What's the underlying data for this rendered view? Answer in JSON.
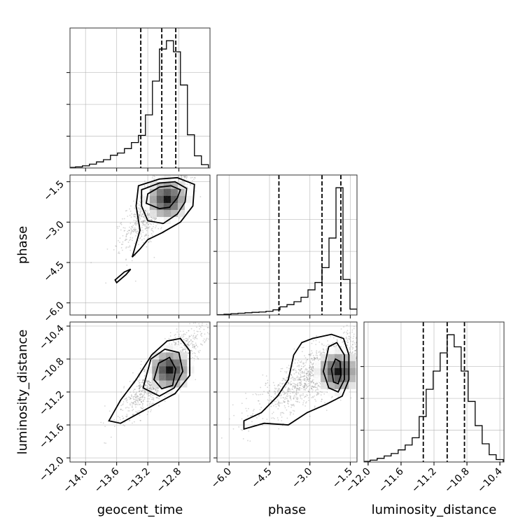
{
  "chart_data": {
    "type": "corner",
    "parameters": [
      "geocent_time",
      "phase",
      "luminosity_distance"
    ],
    "axes": {
      "geocent_time": {
        "label": "geocent_time",
        "range": [
          -14.2,
          -12.4
        ],
        "ticks": [
          -14.0,
          -13.6,
          -13.2,
          -12.8
        ],
        "tick_labels": [
          "−14.0",
          "−13.6",
          "−13.2",
          "−12.8"
        ]
      },
      "phase": {
        "label": "phase",
        "range": [
          -6.45,
          -1.25
        ],
        "ticks": [
          -6.0,
          -4.5,
          -3.0,
          -1.5
        ],
        "tick_labels": [
          "−6.0",
          "−4.5",
          "−3.0",
          "−1.5"
        ]
      },
      "luminosity_distance": {
        "label": "luminosity_distance",
        "range": [
          -12.05,
          -10.35
        ],
        "ticks": [
          -12.0,
          -11.6,
          -11.2,
          -10.8,
          -10.4
        ],
        "tick_labels": [
          "−12.0",
          "−11.6",
          "−11.2",
          "−10.8",
          "−10.4"
        ]
      }
    },
    "histograms": [
      {
        "param": "geocent_time",
        "quantiles": [
          -13.29,
          -13.02,
          -12.84
        ],
        "bin_edges": [
          -14.22,
          -14.13,
          -14.04,
          -13.95,
          -13.86,
          -13.77,
          -13.68,
          -13.59,
          -13.5,
          -13.41,
          -13.32,
          -13.23,
          -13.14,
          -13.05,
          -12.96,
          -12.87,
          -12.78,
          -12.69,
          -12.6,
          -12.51,
          -12.42
        ],
        "counts": [
          1,
          2,
          4,
          7,
          11,
          15,
          23,
          27,
          35,
          46,
          59,
          96,
          157,
          215,
          230,
          210,
          150,
          60,
          22,
          6
        ]
      },
      {
        "param": "phase",
        "quantiles": [
          -4.15,
          -2.55,
          -1.85
        ],
        "bin_edges": [
          -6.45,
          -6.19,
          -5.93,
          -5.67,
          -5.41,
          -5.15,
          -4.89,
          -4.63,
          -4.37,
          -4.11,
          -3.85,
          -3.59,
          -3.33,
          -3.07,
          -2.81,
          -2.55,
          -2.29,
          -2.03,
          -1.77,
          -1.51,
          -1.25
        ],
        "counts": [
          2,
          5,
          9,
          12,
          15,
          18,
          20,
          25,
          35,
          55,
          70,
          90,
          120,
          170,
          220,
          320,
          520,
          860,
          240,
          40
        ]
      },
      {
        "param": "luminosity_distance",
        "quantiles": [
          -11.33,
          -11.04,
          -10.83
        ],
        "bin_edges": [
          -12.06,
          -11.975,
          -11.89,
          -11.805,
          -11.72,
          -11.635,
          -11.55,
          -11.465,
          -11.38,
          -11.295,
          -11.21,
          -11.125,
          -11.04,
          -10.955,
          -10.87,
          -10.785,
          -10.7,
          -10.615,
          -10.53,
          -10.445,
          -10.36
        ],
        "counts": [
          1,
          3,
          6,
          10,
          14,
          20,
          28,
          40,
          75,
          120,
          150,
          180,
          210,
          190,
          150,
          100,
          60,
          30,
          12,
          4
        ]
      }
    ],
    "pairs": [
      {
        "x": "geocent_time",
        "y": "phase",
        "center": [
          -13.0,
          -2.0
        ],
        "sigma": [
          0.23,
          0.85
        ],
        "rho": 0.8,
        "peak": [
          -12.95,
          -2.15
        ],
        "contours": [
          [
            [
              -13.2,
              -1.95
            ],
            [
              -13.05,
              -1.7
            ],
            [
              -12.9,
              -1.65
            ],
            [
              -12.78,
              -1.8
            ],
            [
              -12.82,
              -2.1
            ],
            [
              -12.92,
              -2.45
            ],
            [
              -13.05,
              -2.5
            ],
            [
              -13.22,
              -2.3
            ]
          ],
          [
            [
              -13.28,
              -1.8
            ],
            [
              -13.05,
              -1.55
            ],
            [
              -12.85,
              -1.5
            ],
            [
              -12.7,
              -1.75
            ],
            [
              -12.72,
              -2.25
            ],
            [
              -12.82,
              -2.7
            ],
            [
              -13.0,
              -3.05
            ],
            [
              -13.2,
              -2.95
            ],
            [
              -13.28,
              -2.4
            ]
          ],
          [
            [
              -13.32,
              -1.65
            ],
            [
              -13.05,
              -1.4
            ],
            [
              -12.82,
              -1.35
            ],
            [
              -12.6,
              -1.6
            ],
            [
              -12.62,
              -2.4
            ],
            [
              -12.78,
              -3.0
            ],
            [
              -13.02,
              -3.4
            ],
            [
              -13.2,
              -3.65
            ],
            [
              -13.3,
              -4.0
            ],
            [
              -13.4,
              -4.3
            ],
            [
              -13.3,
              -3.3
            ],
            [
              -13.35,
              -2.4
            ]
          ],
          [
            [
              -13.6,
              -5.25
            ],
            [
              -13.48,
              -4.95
            ],
            [
              -13.42,
              -4.75
            ],
            [
              -13.5,
              -4.85
            ],
            [
              -13.62,
              -5.15
            ]
          ]
        ]
      },
      {
        "x": "geocent_time",
        "y": "luminosity_distance",
        "center": [
          -13.0,
          -10.95
        ],
        "sigma": [
          0.25,
          0.25
        ],
        "rho": 0.85,
        "peak": [
          -12.92,
          -10.93
        ],
        "contours": [
          [
            [
              -13.12,
              -11.05
            ],
            [
              -13.06,
              -10.85
            ],
            [
              -12.92,
              -10.78
            ],
            [
              -12.84,
              -10.92
            ],
            [
              -12.88,
              -11.12
            ],
            [
              -13.02,
              -11.16
            ]
          ],
          [
            [
              -13.26,
              -11.15
            ],
            [
              -13.16,
              -10.8
            ],
            [
              -12.98,
              -10.68
            ],
            [
              -12.8,
              -10.72
            ],
            [
              -12.75,
              -10.95
            ],
            [
              -12.86,
              -11.15
            ],
            [
              -13.05,
              -11.25
            ]
          ],
          [
            [
              -13.7,
              -11.55
            ],
            [
              -13.55,
              -11.3
            ],
            [
              -13.35,
              -11.05
            ],
            [
              -13.15,
              -10.75
            ],
            [
              -12.95,
              -10.58
            ],
            [
              -12.78,
              -10.55
            ],
            [
              -12.66,
              -10.7
            ],
            [
              -12.66,
              -11.0
            ],
            [
              -12.85,
              -11.22
            ],
            [
              -13.05,
              -11.32
            ],
            [
              -13.3,
              -11.45
            ],
            [
              -13.55,
              -11.58
            ]
          ]
        ]
      },
      {
        "x": "phase",
        "y": "luminosity_distance",
        "center": [
          -2.6,
          -10.95
        ],
        "sigma": [
          1.1,
          0.25
        ],
        "rho": 0.8,
        "peak": [
          -1.95,
          -10.95
        ],
        "contours": [
          [
            [
              -2.2,
              -10.92
            ],
            [
              -2.05,
              -10.8
            ],
            [
              -1.88,
              -10.83
            ],
            [
              -1.85,
              -11.0
            ],
            [
              -1.95,
              -11.1
            ],
            [
              -2.12,
              -11.08
            ]
          ],
          [
            [
              -2.5,
              -10.95
            ],
            [
              -2.3,
              -10.65
            ],
            [
              -2.0,
              -10.6
            ],
            [
              -1.72,
              -10.75
            ],
            [
              -1.72,
              -11.05
            ],
            [
              -1.95,
              -11.2
            ],
            [
              -2.3,
              -11.15
            ]
          ],
          [
            [
              -5.45,
              -11.55
            ],
            [
              -4.8,
              -11.45
            ],
            [
              -4.2,
              -11.25
            ],
            [
              -3.8,
              -11.05
            ],
            [
              -3.6,
              -10.75
            ],
            [
              -3.3,
              -10.6
            ],
            [
              -2.9,
              -10.55
            ],
            [
              -2.2,
              -10.5
            ],
            [
              -1.75,
              -10.55
            ],
            [
              -1.55,
              -10.75
            ],
            [
              -1.55,
              -11.05
            ],
            [
              -1.8,
              -11.25
            ],
            [
              -2.4,
              -11.35
            ],
            [
              -3.1,
              -11.45
            ],
            [
              -3.8,
              -11.6
            ],
            [
              -4.7,
              -11.58
            ],
            [
              -5.45,
              -11.65
            ]
          ]
        ]
      }
    ]
  }
}
